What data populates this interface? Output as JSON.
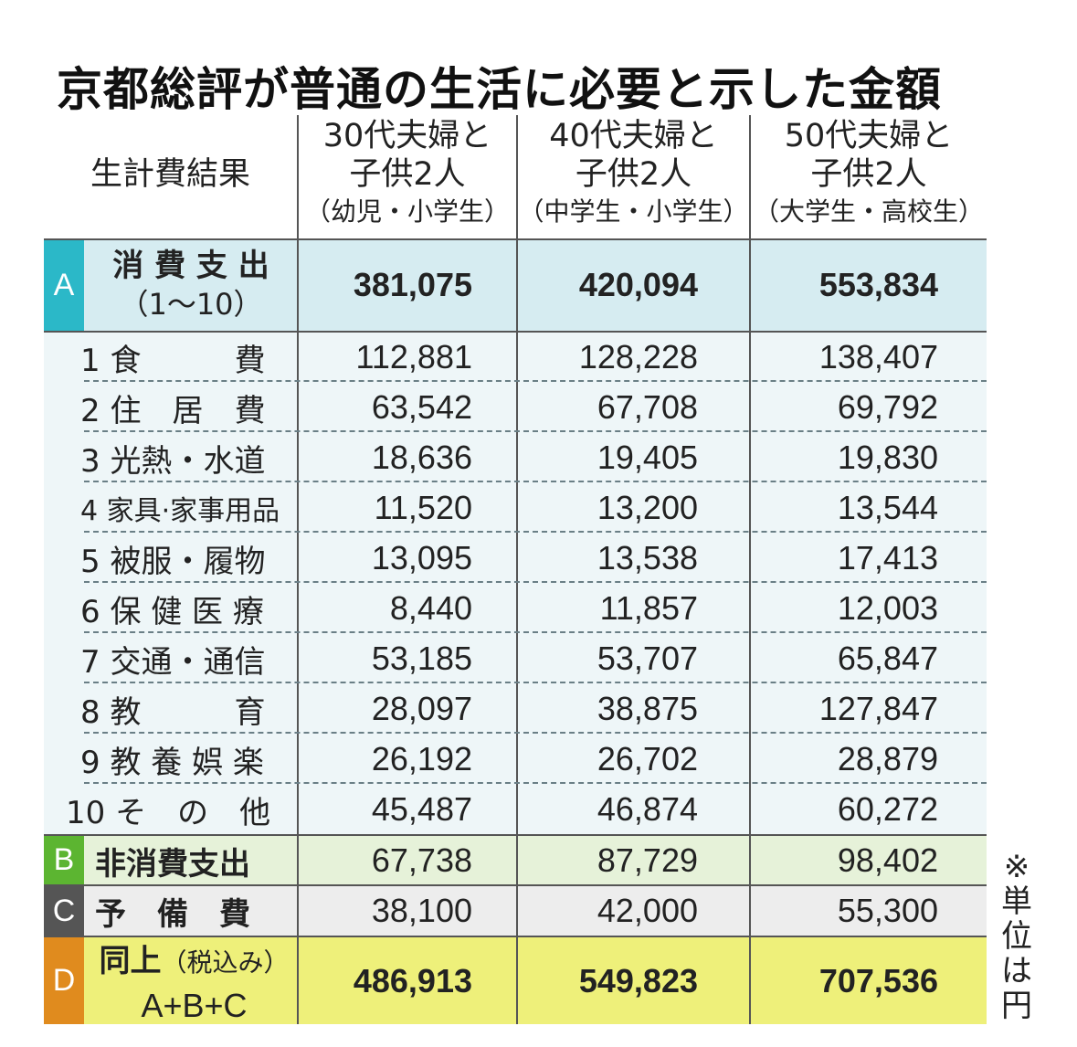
{
  "title": "京都総評が普通の生活に必要と示した金額",
  "header": {
    "corner": "生計費結果",
    "columns": [
      {
        "line1": "30代夫婦と",
        "line2": "子供2人",
        "sub": "（幼児・小学生）"
      },
      {
        "line1": "40代夫婦と",
        "line2": "子供2人",
        "sub": "（中学生・小学生）"
      },
      {
        "line1": "50代夫婦と",
        "line2": "子供2人",
        "sub": "（大学生・高校生）"
      }
    ]
  },
  "rows": {
    "A": {
      "badge": "A",
      "label": "消 費 支 出",
      "label2": "（1〜10）",
      "values": [
        "381,075",
        "420,094",
        "553,834"
      ]
    },
    "items": [
      {
        "label": "1 食　　　費",
        "values": [
          "112,881",
          "128,228",
          "138,407"
        ]
      },
      {
        "label": "2 住　居　費",
        "values": [
          "63,542",
          "67,708",
          "69,792"
        ]
      },
      {
        "label": "3 光熱・水道",
        "values": [
          "18,636",
          "19,405",
          "19,830"
        ]
      },
      {
        "label": "4 家具·家事用品",
        "values": [
          "11,520",
          "13,200",
          "13,544"
        ]
      },
      {
        "label": "5 被服・履物",
        "values": [
          "13,095",
          "13,538",
          "17,413"
        ]
      },
      {
        "label": "6 保 健 医 療",
        "values": [
          "8,440",
          "11,857",
          "12,003"
        ]
      },
      {
        "label": "7 交通・通信",
        "values": [
          "53,185",
          "53,707",
          "65,847"
        ]
      },
      {
        "label": "8 教　　　育",
        "values": [
          "28,097",
          "38,875",
          "127,847"
        ]
      },
      {
        "label": "9 教 養 娯 楽",
        "values": [
          "26,192",
          "26,702",
          "28,879"
        ]
      },
      {
        "label": "10 そ　の　他",
        "values": [
          "45,487",
          "46,874",
          "60,272"
        ]
      }
    ],
    "B": {
      "badge": "B",
      "label": "非消費支出",
      "values": [
        "67,738",
        "87,729",
        "98,402"
      ]
    },
    "C": {
      "badge": "C",
      "label": "予　備　費",
      "values": [
        "38,100",
        "42,000",
        "55,300"
      ]
    },
    "D": {
      "badge": "D",
      "label": "同上",
      "label_small": "（税込み）",
      "label2": "A+B+C",
      "values": [
        "486,913",
        "549,823",
        "707,536"
      ]
    }
  },
  "note": "※単位は円",
  "colors": {
    "A_band": "#d6ecf1",
    "A_badge": "#2bb8c8",
    "B_band": "#e6f2d9",
    "B_badge": "#5cb531",
    "C_band": "#ededed",
    "C_badge": "#555555",
    "D_band": "#eef07a",
    "D_badge": "#e08b1e",
    "items_band": "#eef6f8"
  }
}
